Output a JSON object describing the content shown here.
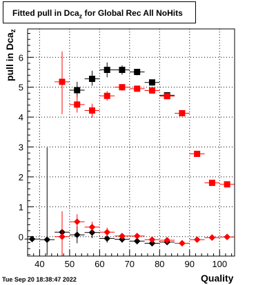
{
  "header": {
    "title_main": "Fitted pull in Dca",
    "title_sub": "z",
    "title_rest": " for Global Rec All NoHits"
  },
  "axes": {
    "ylabel_main": "pull in Dca",
    "ylabel_sub": "z",
    "xlabel": "Quality"
  },
  "footer": {
    "timestamp": "Tue Sep 20 18:38:47 2022"
  },
  "colors": {
    "series1": "#000000",
    "series2": "#ff0000",
    "grid": "#000000"
  },
  "chart_data": {
    "type": "scatter",
    "xlim": [
      36,
      105
    ],
    "ylim": [
      -0.65,
      6.95
    ],
    "xticks": [
      40,
      50,
      60,
      70,
      80,
      90,
      100
    ],
    "yticks": [
      0,
      1,
      2,
      3,
      4,
      5,
      6
    ],
    "grid": true,
    "series": [
      {
        "marker": "square",
        "color": "#000000",
        "points": [
          {
            "x": 52.5,
            "y": 4.9,
            "ylo": 4.67,
            "yhi": 5.18
          },
          {
            "x": 57.5,
            "y": 5.28,
            "ylo": 5.05,
            "yhi": 5.55
          },
          {
            "x": 62.5,
            "y": 5.58,
            "ylo": 5.33,
            "yhi": 5.83
          },
          {
            "x": 67.5,
            "y": 5.58,
            "ylo": 5.42,
            "yhi": 5.73
          },
          {
            "x": 72.5,
            "y": 5.51,
            "ylo": 5.4,
            "yhi": 5.6
          },
          {
            "x": 77.5,
            "y": 5.16,
            "ylo": 5.05,
            "yhi": 5.25
          },
          {
            "x": 82.5,
            "y": 4.73,
            "ylo": 4.66,
            "yhi": 4.8
          }
        ]
      },
      {
        "marker": "square",
        "color": "#ff0000",
        "points": [
          {
            "x": 47.5,
            "y": 5.18,
            "ylo": 4.1,
            "yhi": 6.2
          },
          {
            "x": 52.5,
            "y": 4.42,
            "ylo": 4.15,
            "yhi": 4.75
          },
          {
            "x": 57.5,
            "y": 4.22,
            "ylo": 3.98,
            "yhi": 4.45
          },
          {
            "x": 62.5,
            "y": 4.71,
            "ylo": 4.55,
            "yhi": 4.87
          },
          {
            "x": 67.5,
            "y": 5.0,
            "ylo": 4.88,
            "yhi": 5.1
          },
          {
            "x": 72.5,
            "y": 4.95,
            "ylo": 4.87,
            "yhi": 5.03
          },
          {
            "x": 77.5,
            "y": 4.89,
            "ylo": 4.82,
            "yhi": 4.96
          },
          {
            "x": 82.5,
            "y": 4.7,
            "ylo": 4.65,
            "yhi": 4.76
          },
          {
            "x": 87.5,
            "y": 4.13,
            "ylo": 4.09,
            "yhi": 4.17
          },
          {
            "x": 92.5,
            "y": 2.77,
            "ylo": 2.74,
            "yhi": 2.8
          },
          {
            "x": 97.5,
            "y": 1.8,
            "ylo": 1.78,
            "yhi": 1.82
          },
          {
            "x": 102.5,
            "y": 1.75,
            "ylo": 1.73,
            "yhi": 1.77
          }
        ]
      },
      {
        "marker": "diamond",
        "color": "#000000",
        "points": [
          {
            "x": 37.5,
            "y": -0.08,
            "ylo": -0.1,
            "yhi": -0.06
          },
          {
            "x": 42.5,
            "y": -0.1,
            "ylo": -0.62,
            "yhi": 2.98
          },
          {
            "x": 47.5,
            "y": 0.15,
            "ylo": -0.2,
            "yhi": 0.45
          },
          {
            "x": 52.5,
            "y": 0.06,
            "ylo": -0.22,
            "yhi": 0.34
          },
          {
            "x": 57.5,
            "y": 0.14,
            "ylo": -0.05,
            "yhi": 0.33
          },
          {
            "x": 62.5,
            "y": -0.06,
            "ylo": -0.2,
            "yhi": 0.08
          },
          {
            "x": 67.5,
            "y": -0.09,
            "ylo": -0.2,
            "yhi": 0.02
          },
          {
            "x": 72.5,
            "y": -0.15,
            "ylo": -0.24,
            "yhi": -0.06
          },
          {
            "x": 77.5,
            "y": -0.22,
            "ylo": -0.29,
            "yhi": -0.15
          },
          {
            "x": 82.5,
            "y": -0.18,
            "ylo": -0.24,
            "yhi": -0.12
          }
        ]
      },
      {
        "marker": "diamond",
        "color": "#ff0000",
        "points": [
          {
            "x": 47.5,
            "y": 0.0,
            "ylo": -0.85,
            "yhi": 0.85
          },
          {
            "x": 52.5,
            "y": 0.5,
            "ylo": 0.25,
            "yhi": 0.75
          },
          {
            "x": 57.5,
            "y": 0.32,
            "ylo": 0.14,
            "yhi": 0.5
          },
          {
            "x": 62.5,
            "y": 0.15,
            "ylo": 0.0,
            "yhi": 0.3
          },
          {
            "x": 67.5,
            "y": 0.02,
            "ylo": -0.08,
            "yhi": 0.12
          },
          {
            "x": 72.5,
            "y": 0.02,
            "ylo": -0.06,
            "yhi": 0.1
          },
          {
            "x": 77.5,
            "y": -0.1,
            "ylo": -0.17,
            "yhi": -0.03
          },
          {
            "x": 82.5,
            "y": -0.12,
            "ylo": -0.17,
            "yhi": -0.07
          },
          {
            "x": 87.5,
            "y": -0.22,
            "ylo": -0.26,
            "yhi": -0.18
          },
          {
            "x": 92.5,
            "y": -0.1,
            "ylo": -0.13,
            "yhi": -0.07
          },
          {
            "x": 97.5,
            "y": -0.03,
            "ylo": -0.05,
            "yhi": -0.01
          },
          {
            "x": 102.5,
            "y": -0.01,
            "ylo": -0.03,
            "yhi": 0.01
          }
        ]
      }
    ]
  }
}
